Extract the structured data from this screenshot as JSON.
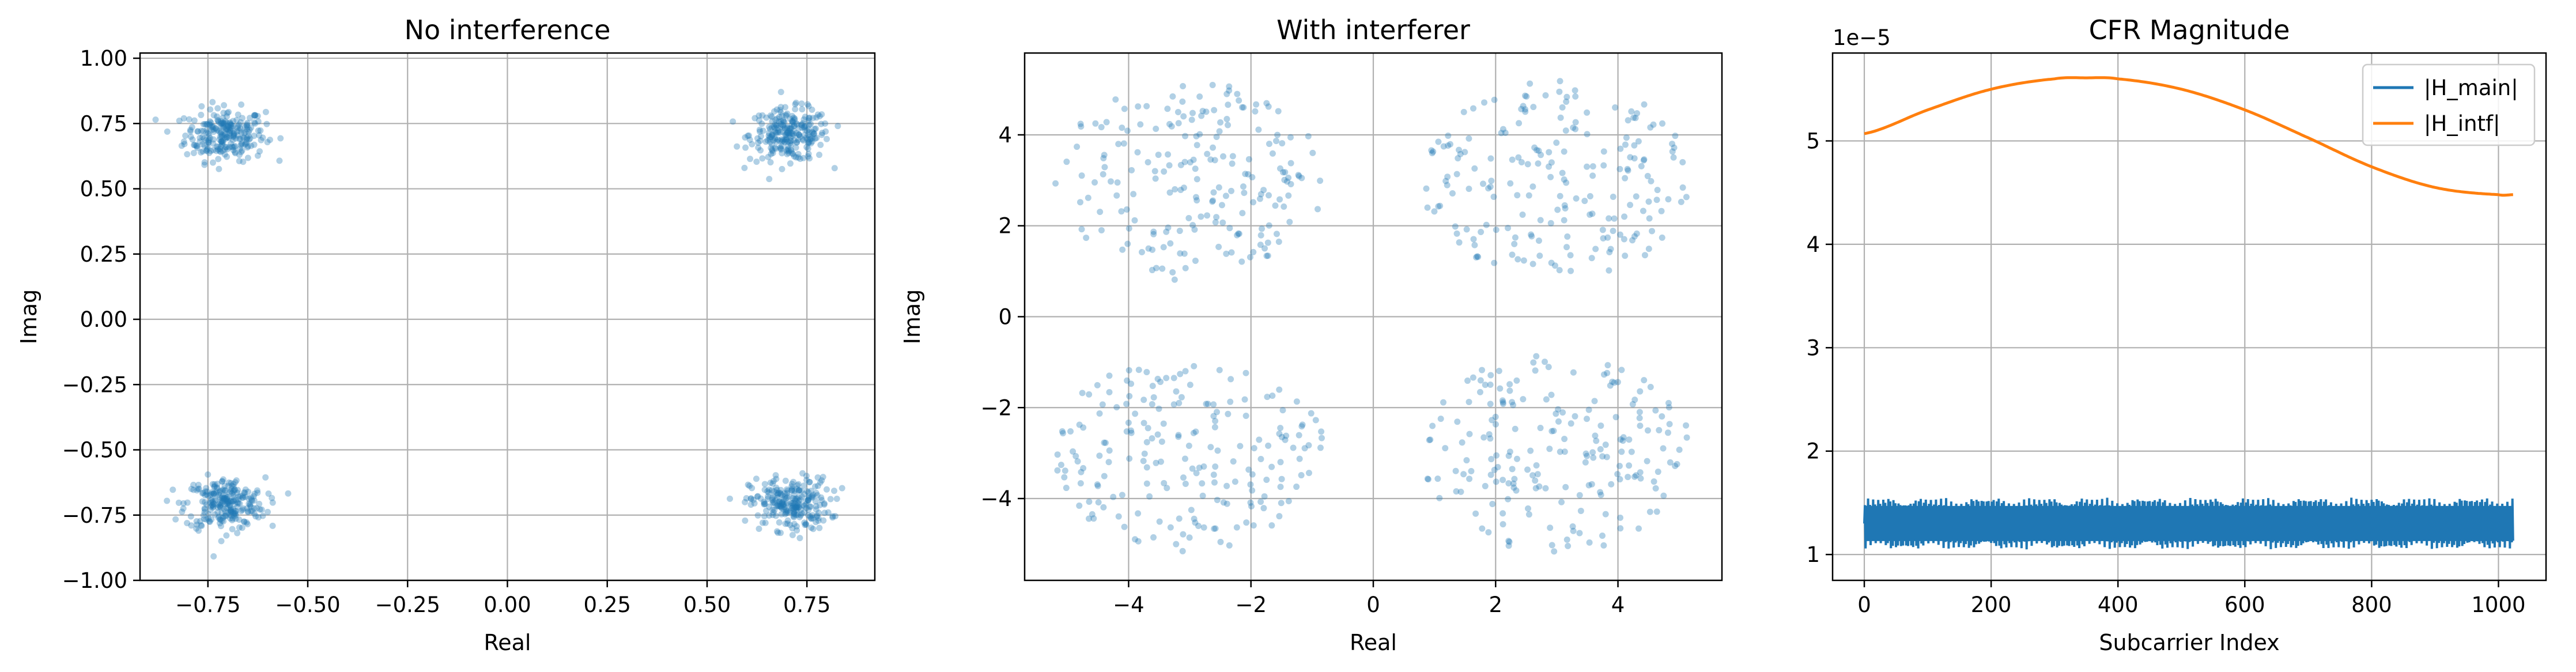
{
  "chart_data": [
    {
      "type": "scatter",
      "title": "No interference",
      "xlabel": "Real",
      "ylabel": "Imag",
      "xlim": [
        -0.92,
        0.92
      ],
      "ylim": [
        -1.0,
        1.02
      ],
      "xticks": [
        -0.75,
        -0.5,
        -0.25,
        0.0,
        0.25,
        0.5,
        0.75
      ],
      "yticks": [
        -1.0,
        -0.75,
        -0.5,
        -0.25,
        0.0,
        0.25,
        0.5,
        0.75,
        1.0
      ],
      "xtick_labels": [
        "−0.75",
        "−0.50",
        "−0.25",
        "0.00",
        "0.25",
        "0.50",
        "0.75"
      ],
      "ytick_labels": [
        "−1.00",
        "−0.75",
        "−0.50",
        "−0.25",
        "0.00",
        "0.25",
        "0.50",
        "0.75",
        "1.00"
      ],
      "grid": true,
      "point_color": "#1f77b4",
      "clusters": [
        {
          "center": [
            -0.707,
            0.707
          ],
          "spread": 0.05,
          "count": 250
        },
        {
          "center": [
            0.707,
            0.707
          ],
          "spread": 0.05,
          "count": 250
        },
        {
          "center": [
            -0.707,
            -0.707
          ],
          "spread": 0.05,
          "count": 250
        },
        {
          "center": [
            0.707,
            -0.707
          ],
          "spread": 0.05,
          "count": 250
        }
      ]
    },
    {
      "type": "scatter",
      "title": "With interferer",
      "xlabel": "Real",
      "ylabel": "Imag",
      "xlim": [
        -5.7,
        5.7
      ],
      "ylim": [
        -5.8,
        5.8
      ],
      "xticks": [
        -4,
        -2,
        0,
        2,
        4
      ],
      "yticks": [
        -4,
        -2,
        0,
        2,
        4
      ],
      "xtick_labels": [
        "−4",
        "−2",
        "0",
        "2",
        "4"
      ],
      "ytick_labels": [
        "−4",
        "−2",
        "0",
        "2",
        "4"
      ],
      "grid": true,
      "point_color": "#1f77b4",
      "clusters": [
        {
          "center": [
            -3.0,
            3.0
          ],
          "radius": 2.2,
          "count": 200
        },
        {
          "center": [
            3.0,
            3.0
          ],
          "radius": 2.2,
          "count": 200
        },
        {
          "center": [
            -3.0,
            -3.0
          ],
          "radius": 2.2,
          "count": 200
        },
        {
          "center": [
            3.0,
            -3.0
          ],
          "radius": 2.2,
          "count": 200
        }
      ]
    },
    {
      "type": "line",
      "title": "CFR Magnitude",
      "xlabel": "Subcarrier Index",
      "ylabel": "",
      "offset_label": "1e−5",
      "xlim": [
        -50,
        1075
      ],
      "ylim": [
        0.75,
        5.85
      ],
      "xticks": [
        0,
        200,
        400,
        600,
        800,
        1000
      ],
      "yticks": [
        1,
        2,
        3,
        4,
        5
      ],
      "xtick_labels": [
        "0",
        "200",
        "400",
        "600",
        "800",
        "1000"
      ],
      "ytick_labels": [
        "1",
        "2",
        "3",
        "4",
        "5"
      ],
      "grid": true,
      "legend_position": "top-right",
      "series": [
        {
          "name": "|H_main|",
          "color": "#1f77b4",
          "x_range": [
            0,
            1023
          ],
          "band_low": 1.05,
          "band_high": 1.55,
          "note_values": "rapidly oscillating between ~1.05 and ~1.55 (×1e-5)"
        },
        {
          "name": "|H_intf|",
          "color": "#ff7f0e",
          "x": [
            0,
            100,
            200,
            300,
            350,
            400,
            500,
            600,
            700,
            800,
            900,
            1000,
            1023
          ],
          "values": [
            5.07,
            5.3,
            5.5,
            5.6,
            5.61,
            5.6,
            5.5,
            5.3,
            5.03,
            4.75,
            4.55,
            4.48,
            4.48
          ]
        }
      ]
    }
  ]
}
